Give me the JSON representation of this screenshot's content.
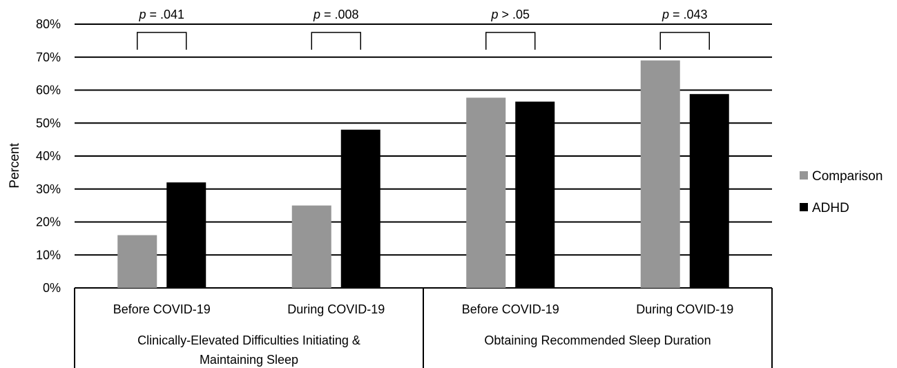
{
  "chart_data": {
    "type": "bar",
    "ylabel": "Percent",
    "ylim": [
      0,
      80
    ],
    "yticks": [
      "0%",
      "10%",
      "20%",
      "30%",
      "40%",
      "50%",
      "60%",
      "70%",
      "80%"
    ],
    "grid": true,
    "legend_position": "right",
    "categories": [
      "Before COVID-19",
      "During COVID-19",
      "Before COVID-19",
      "During COVID-19"
    ],
    "groups": [
      {
        "label": "Clinically-Elevated Difficulties Initiating & Maintaining Sleep",
        "line1": "Clinically-Elevated Difficulties Initiating &",
        "line2": "Maintaining Sleep"
      },
      {
        "label": "Obtaining Recommended Sleep Duration",
        "line1": "Obtaining Recommended Sleep Duration",
        "line2": ""
      }
    ],
    "series": [
      {
        "name": "Comparison",
        "color": "#969696",
        "values": [
          16,
          25,
          57.7,
          69
        ]
      },
      {
        "name": "ADHD",
        "color": "#000000",
        "values": [
          32,
          48,
          56.5,
          58.8
        ]
      }
    ],
    "annotations": [
      {
        "p": "p",
        "rest": " = .041"
      },
      {
        "p": "p",
        "rest": " = .008"
      },
      {
        "p": "p",
        "rest": " > .05"
      },
      {
        "p": "p",
        "rest": " = .043"
      }
    ]
  }
}
